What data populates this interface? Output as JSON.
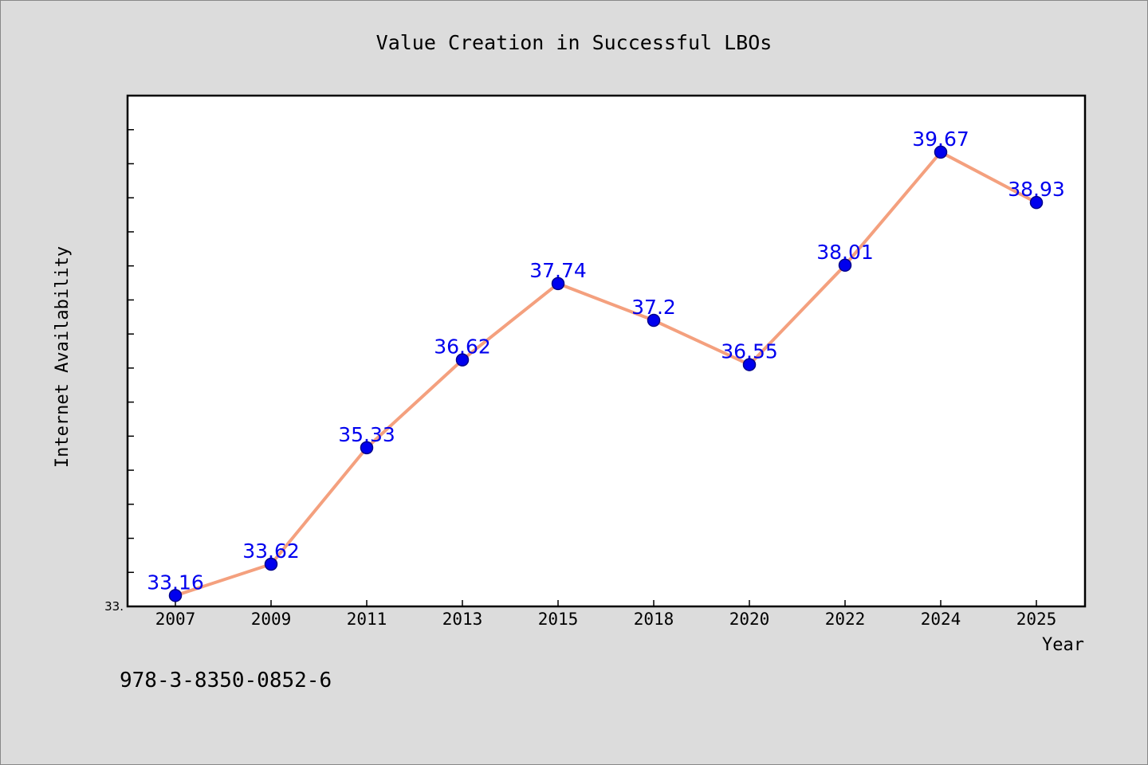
{
  "chart_data": {
    "type": "line",
    "title": "Value Creation in Successful LBOs",
    "xlabel": "Year",
    "ylabel": "Internet Availability",
    "categories": [
      "2007",
      "2009",
      "2011",
      "2013",
      "2015",
      "2018",
      "2020",
      "2022",
      "2024",
      "2025"
    ],
    "values": [
      33.16,
      33.62,
      35.33,
      36.62,
      37.74,
      37.2,
      36.55,
      38.01,
      39.67,
      38.93
    ],
    "ylim": [
      33.0,
      40.5
    ],
    "y_tick_label": "33.",
    "grid": false,
    "legend": "none",
    "colors": {
      "line": "#f4a07e",
      "marker": "#0000ee",
      "marker_edge": "#00008b",
      "label": "#0000ee",
      "background": "#dcdcdc",
      "plot_background": "#ffffff"
    }
  },
  "footer": {
    "isbn": "978-3-8350-0852-6"
  }
}
